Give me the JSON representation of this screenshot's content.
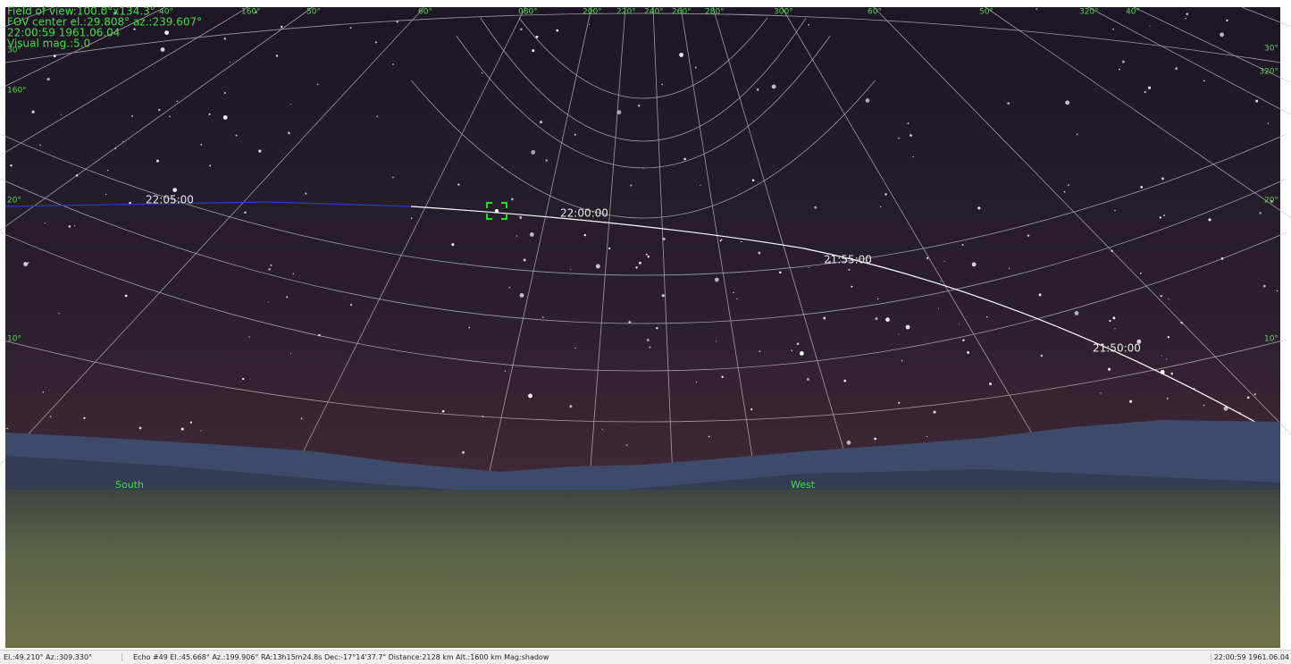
{
  "overlay": {
    "lines": [
      "Field of view:100.0°x134.3°",
      "FOV center el.:29.808° az.:239.607°",
      "22:00:59 1961.06.04",
      "Visual mag.:5.0"
    ]
  },
  "grid_labels": {
    "top": [
      "40°",
      "160°",
      "50°",
      "60°",
      "080°",
      "200°",
      "220°",
      "240°",
      "260°",
      "280°",
      "300°",
      "60°",
      "50°",
      "320°",
      "40°"
    ],
    "left": [
      "30°",
      "160°",
      "20°",
      "10°"
    ],
    "right": [
      "30°",
      "320°",
      "20°",
      "10°"
    ]
  },
  "track_labels": [
    "22:05:00",
    "22:00:00",
    "21:55:00",
    "21:50:00"
  ],
  "cardinals": [
    "South",
    "West"
  ],
  "status_bar": {
    "cursor": "El.:49.210° Az.:309.330°",
    "object": "Echo #49 El.:45.668° Az.:199.906° RA:13h15m24.8s Dec:-17°14'37.7\" Distance:2128 km Alt.:1600 km Mag:shadow",
    "time": "22:00:59 1961.06.04"
  }
}
